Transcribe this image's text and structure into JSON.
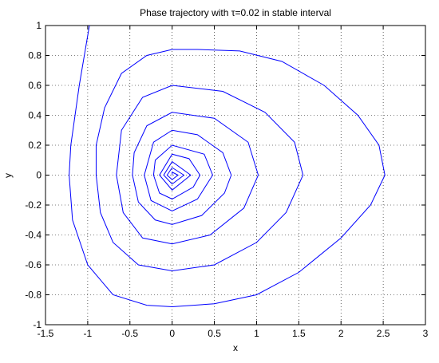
{
  "chart_data": {
    "type": "line",
    "title": "Phase trajectory with τ=0.02 in stable interval",
    "xlabel": "x",
    "ylabel": "y",
    "xlim": [
      -1.5,
      3
    ],
    "ylim": [
      -1,
      1
    ],
    "xticks": [
      -1.5,
      -1,
      -0.5,
      0,
      0.5,
      1,
      1.5,
      2,
      2.5,
      3
    ],
    "yticks": [
      -1,
      -0.8,
      -0.6,
      -0.4,
      -0.2,
      0,
      0.2,
      0.4,
      0.6,
      0.8,
      1
    ],
    "grid": true,
    "series": [
      {
        "color": "#0000ff",
        "x": [
          -0.98,
          -1.1,
          -1.2,
          -1.22,
          -1.18,
          -1.0,
          -0.7,
          -0.3,
          0,
          0.5,
          1.0,
          1.5,
          2.0,
          2.35,
          2.52,
          2.45,
          2.2,
          1.8,
          1.3,
          0.8,
          0.3,
          0,
          -0.3,
          -0.6,
          -0.8,
          -0.9,
          -0.9,
          -0.85,
          -0.7,
          -0.4,
          0,
          0.5,
          1.0,
          1.35,
          1.55,
          1.45,
          1.1,
          0.6,
          0,
          -0.35,
          -0.6,
          -0.66,
          -0.58,
          -0.35,
          0,
          0.45,
          0.85,
          1.02,
          0.9,
          0.5,
          0,
          -0.3,
          -0.45,
          -0.47,
          -0.4,
          -0.2,
          0,
          0.35,
          0.62,
          0.7,
          0.6,
          0.3,
          0,
          -0.22,
          -0.33,
          -0.25,
          0,
          0.3,
          0.48,
          0.38,
          0,
          -0.2,
          -0.22,
          -0.15,
          0,
          0.25,
          0.33,
          0.2,
          0,
          -0.15,
          0,
          0.22,
          0,
          -0.1,
          0,
          0.14,
          0,
          -0.06,
          0,
          0.07,
          0,
          0
        ],
        "values": [
          1.0,
          0.6,
          0.2,
          0,
          -0.3,
          -0.6,
          -0.8,
          -0.87,
          -0.88,
          -0.86,
          -0.8,
          -0.65,
          -0.42,
          -0.2,
          0,
          0.2,
          0.4,
          0.6,
          0.76,
          0.83,
          0.84,
          0.84,
          0.8,
          0.68,
          0.45,
          0.2,
          0,
          -0.25,
          -0.45,
          -0.6,
          -0.64,
          -0.6,
          -0.45,
          -0.25,
          0,
          0.22,
          0.42,
          0.56,
          0.6,
          0.52,
          0.3,
          0,
          -0.25,
          -0.42,
          -0.46,
          -0.4,
          -0.22,
          0,
          0.22,
          0.38,
          0.42,
          0.33,
          0.15,
          0,
          -0.18,
          -0.3,
          -0.33,
          -0.27,
          -0.12,
          0,
          0.15,
          0.27,
          0.3,
          0.22,
          0,
          -0.17,
          -0.24,
          -0.16,
          0,
          0.14,
          0.2,
          0.1,
          0,
          -0.12,
          -0.16,
          -0.08,
          0,
          0.11,
          0.14,
          0,
          -0.1,
          0,
          0.09,
          0,
          -0.06,
          0,
          0.05,
          0,
          -0.03,
          0,
          0.02,
          0
        ]
      }
    ]
  }
}
